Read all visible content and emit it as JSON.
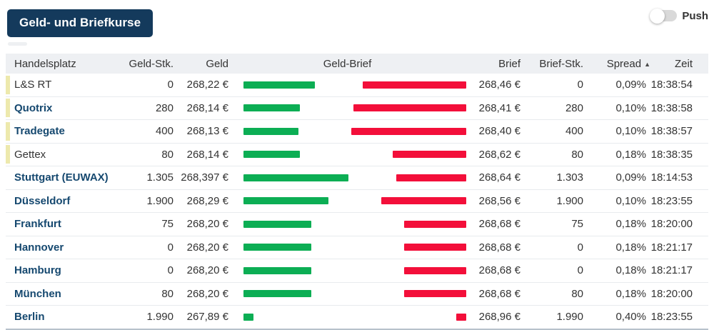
{
  "title": "Geld- und Briefkurse",
  "push_toggle": {
    "label": "Push",
    "state": "off"
  },
  "icons": {
    "sort_asc": "▲"
  },
  "colors": {
    "title_bg": "#143a5c",
    "link": "#15486f",
    "bid_bar_green": "#0cae54",
    "ask_bar_red": "#f30f3a",
    "row_marker_yellow": "#ede9ad",
    "header_bg": "#eef0f3"
  },
  "table": {
    "columns": {
      "handelsplatz": "Handelsplatz",
      "geld_stk": "Geld-Stk.",
      "geld": "Geld",
      "geld_brief": "Geld-Brief",
      "brief": "Brief",
      "brief_stk": "Brief-Stk.",
      "spread": "Spread",
      "zeit": "Zeit"
    },
    "sorted_column": "spread",
    "sort_direction": "asc",
    "rows": [
      {
        "name": "L&S RT",
        "link": false,
        "marker": true,
        "geld_stk": "0",
        "geld": "268,22 €",
        "geld_num": 268.22,
        "brief": "268,46 €",
        "brief_num": 268.46,
        "brief_stk": "0",
        "spread": "0,09%",
        "zeit": "18:38:54"
      },
      {
        "name": "Quotrix",
        "link": true,
        "marker": true,
        "geld_stk": "280",
        "geld": "268,14 €",
        "geld_num": 268.14,
        "brief": "268,41 €",
        "brief_num": 268.41,
        "brief_stk": "280",
        "spread": "0,10%",
        "zeit": "18:38:58"
      },
      {
        "name": "Tradegate",
        "link": true,
        "marker": true,
        "geld_stk": "400",
        "geld": "268,13 €",
        "geld_num": 268.13,
        "brief": "268,40 €",
        "brief_num": 268.4,
        "brief_stk": "400",
        "spread": "0,10%",
        "zeit": "18:38:57"
      },
      {
        "name": "Gettex",
        "link": false,
        "marker": true,
        "geld_stk": "80",
        "geld": "268,14 €",
        "geld_num": 268.14,
        "brief": "268,62 €",
        "brief_num": 268.62,
        "brief_stk": "80",
        "spread": "0,18%",
        "zeit": "18:38:35"
      },
      {
        "name": "Stuttgart (EUWAX)",
        "link": true,
        "marker": false,
        "geld_stk": "1.305",
        "geld": "268,397 €",
        "geld_num": 268.397,
        "brief": "268,64 €",
        "brief_num": 268.64,
        "brief_stk": "1.303",
        "spread": "0,09%",
        "zeit": "18:14:53"
      },
      {
        "name": "Düsseldorf",
        "link": true,
        "marker": false,
        "geld_stk": "1.900",
        "geld": "268,29 €",
        "geld_num": 268.29,
        "brief": "268,56 €",
        "brief_num": 268.56,
        "brief_stk": "1.900",
        "spread": "0,10%",
        "zeit": "18:23:55"
      },
      {
        "name": "Frankfurt",
        "link": true,
        "marker": false,
        "geld_stk": "75",
        "geld": "268,20 €",
        "geld_num": 268.2,
        "brief": "268,68 €",
        "brief_num": 268.68,
        "brief_stk": "75",
        "spread": "0,18%",
        "zeit": "18:20:00"
      },
      {
        "name": "Hannover",
        "link": true,
        "marker": false,
        "geld_stk": "0",
        "geld": "268,20 €",
        "geld_num": 268.2,
        "brief": "268,68 €",
        "brief_num": 268.68,
        "brief_stk": "0",
        "spread": "0,18%",
        "zeit": "18:21:17"
      },
      {
        "name": "Hamburg",
        "link": true,
        "marker": false,
        "geld_stk": "0",
        "geld": "268,20 €",
        "geld_num": 268.2,
        "brief": "268,68 €",
        "brief_num": 268.68,
        "brief_stk": "0",
        "spread": "0,18%",
        "zeit": "18:21:17"
      },
      {
        "name": "München",
        "link": true,
        "marker": false,
        "geld_stk": "80",
        "geld": "268,20 €",
        "geld_num": 268.2,
        "brief": "268,68 €",
        "brief_num": 268.68,
        "brief_stk": "80",
        "spread": "0,18%",
        "zeit": "18:20:00"
      },
      {
        "name": "Berlin",
        "link": true,
        "marker": false,
        "geld_stk": "1.990",
        "geld": "267,89 €",
        "geld_num": 267.89,
        "brief": "268,96 €",
        "brief_num": 268.96,
        "brief_stk": "1.990",
        "spread": "0,40%",
        "zeit": "18:23:55"
      }
    ]
  }
}
